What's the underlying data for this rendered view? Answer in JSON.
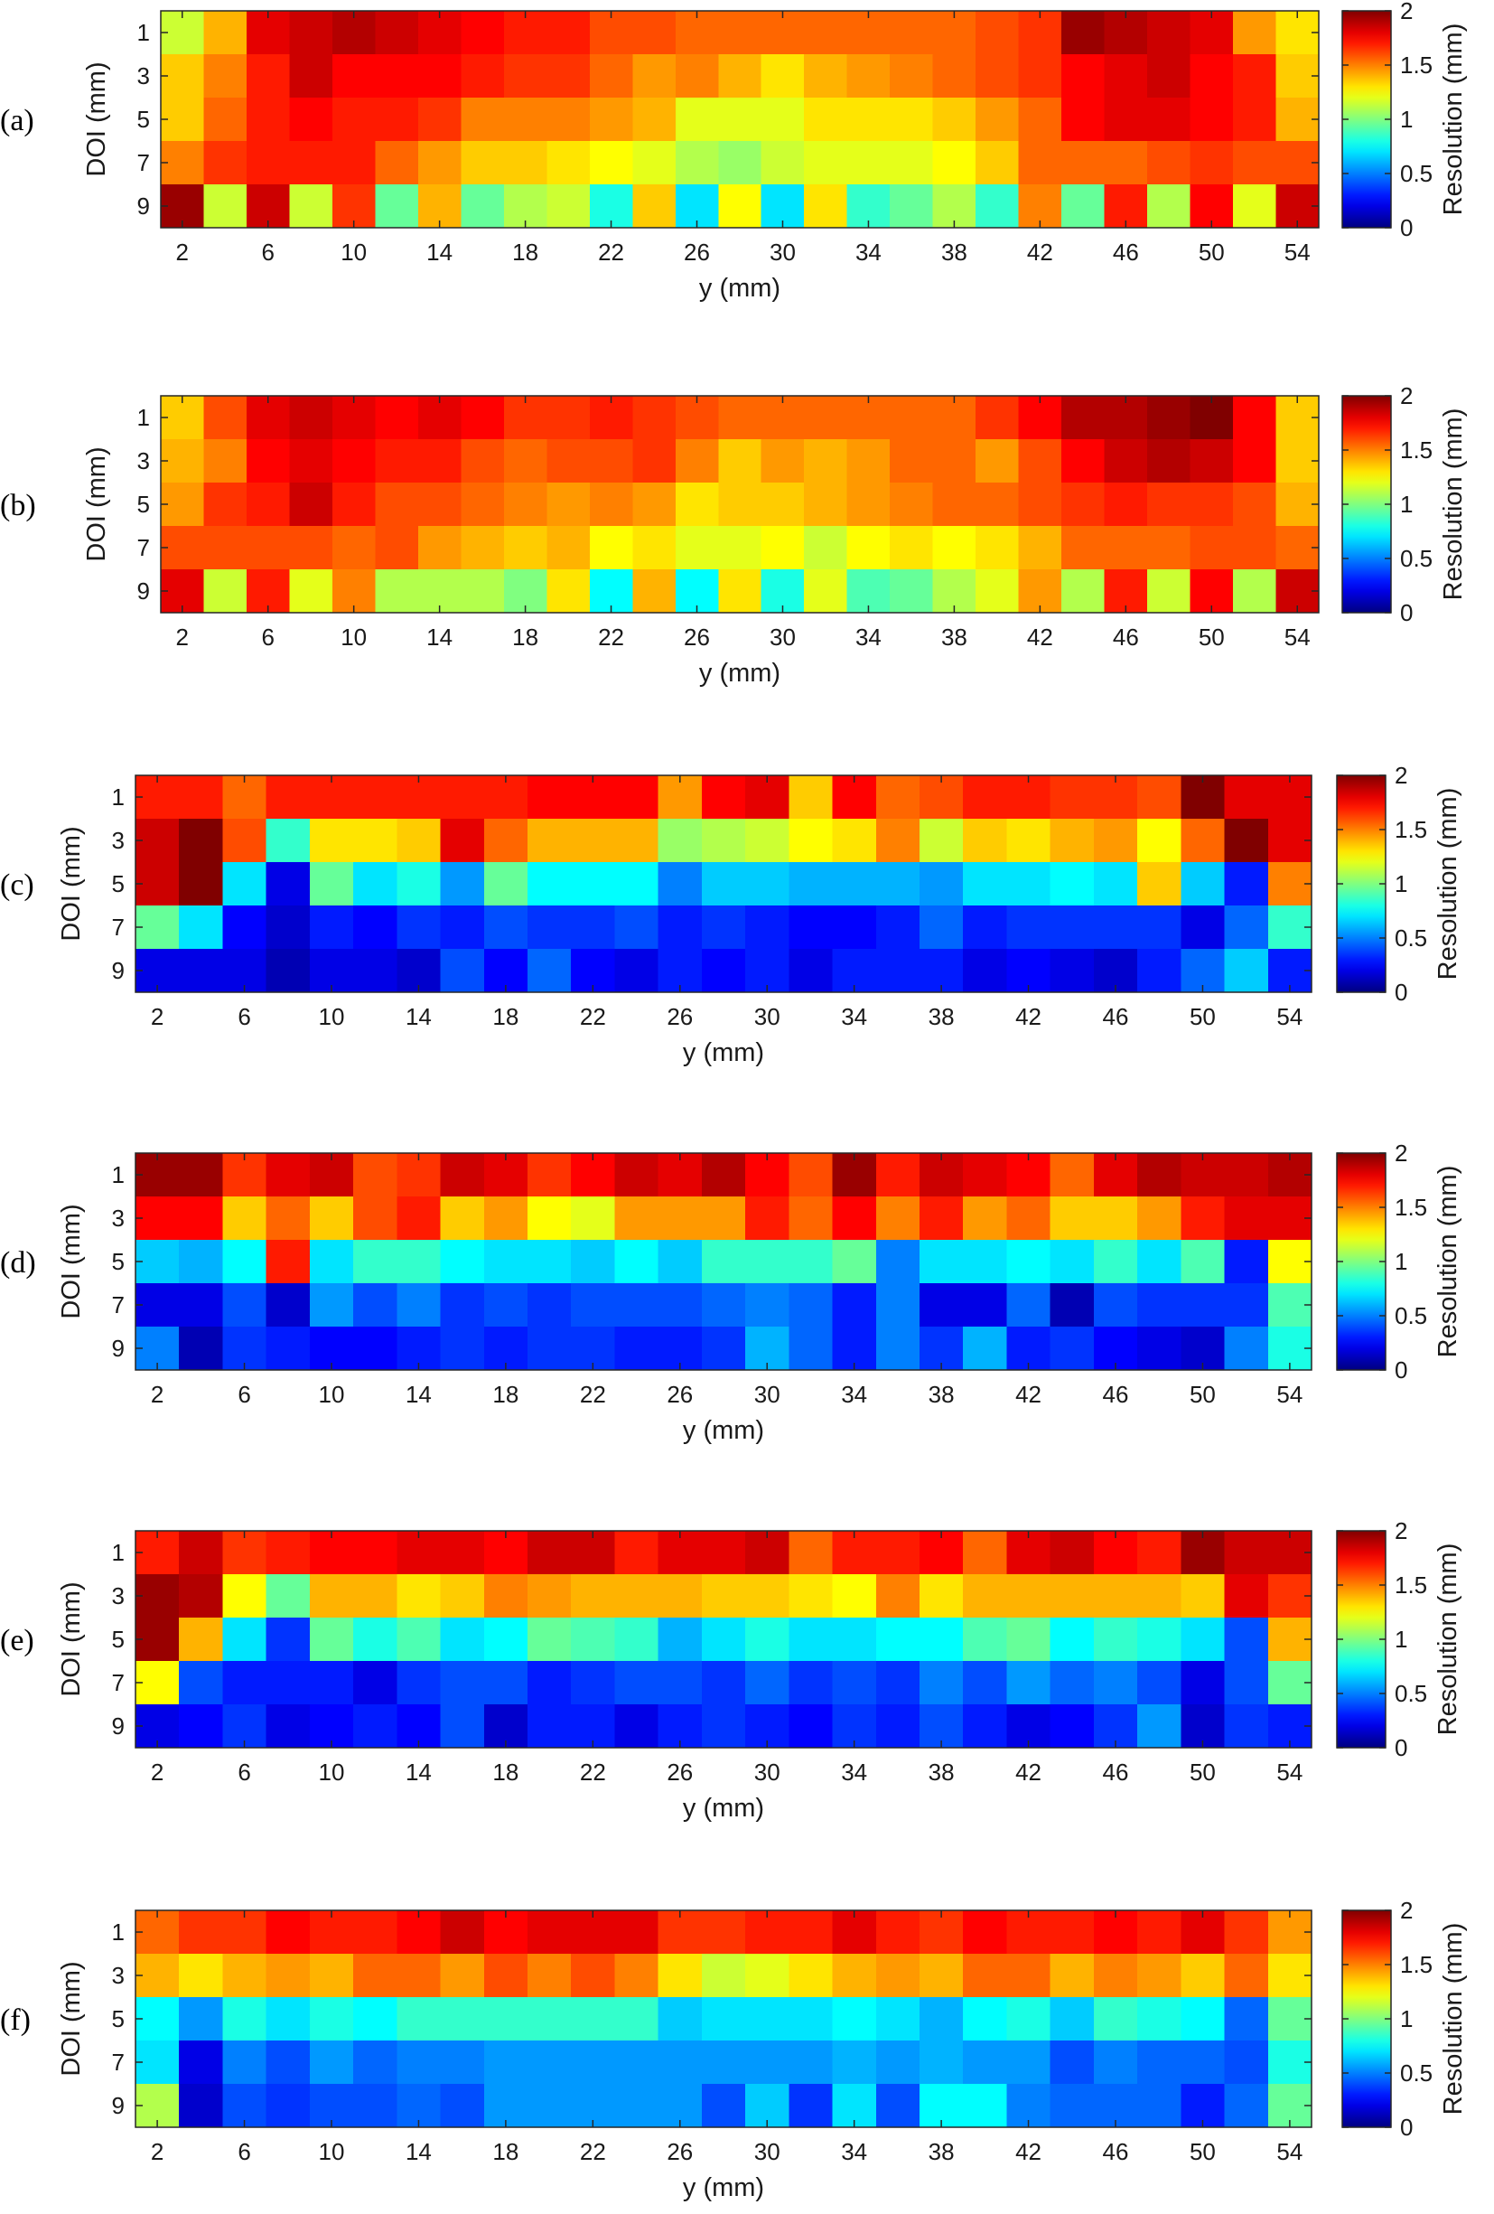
{
  "figure": {
    "xlabel": "y (mm)",
    "ylabel": "DOI (mm)",
    "colorbar_label": "Resolution (mm)",
    "colormap": "jet",
    "clim": [
      0,
      2
    ],
    "colorbar_ticks": [
      "0",
      "0.5",
      "1",
      "1.5",
      "2"
    ],
    "x_ticks": [
      "2",
      "6",
      "10",
      "14",
      "18",
      "22",
      "26",
      "30",
      "34",
      "38",
      "42",
      "46",
      "50",
      "54"
    ],
    "y_ticks": [
      "1",
      "3",
      "5",
      "7",
      "9"
    ]
  },
  "chart_data": [
    {
      "type": "heatmap",
      "panel_label": "(a)",
      "xlabel": "y (mm)",
      "ylabel": "DOI (mm)",
      "colorbar_label": "Resolution (mm)",
      "x": [
        2,
        4,
        6,
        8,
        10,
        12,
        14,
        16,
        18,
        20,
        22,
        24,
        26,
        28,
        30,
        32,
        34,
        36,
        38,
        40,
        42,
        44,
        46,
        48,
        50,
        52,
        54
      ],
      "y": [
        1,
        3,
        5,
        7,
        9
      ],
      "zlim": [
        0,
        2
      ],
      "values": [
        [
          1.15,
          1.4,
          1.8,
          1.85,
          1.9,
          1.85,
          1.8,
          1.75,
          1.7,
          1.7,
          1.6,
          1.6,
          1.55,
          1.55,
          1.55,
          1.55,
          1.55,
          1.55,
          1.55,
          1.6,
          1.65,
          1.95,
          1.9,
          1.85,
          1.8,
          1.45,
          1.3
        ],
        [
          1.35,
          1.5,
          1.7,
          1.85,
          1.75,
          1.75,
          1.75,
          1.7,
          1.65,
          1.65,
          1.55,
          1.45,
          1.5,
          1.4,
          1.3,
          1.4,
          1.45,
          1.5,
          1.55,
          1.6,
          1.65,
          1.75,
          1.8,
          1.85,
          1.75,
          1.7,
          1.35
        ],
        [
          1.35,
          1.55,
          1.7,
          1.75,
          1.7,
          1.7,
          1.65,
          1.5,
          1.5,
          1.5,
          1.45,
          1.4,
          1.2,
          1.2,
          1.2,
          1.3,
          1.3,
          1.3,
          1.35,
          1.45,
          1.55,
          1.75,
          1.8,
          1.8,
          1.75,
          1.7,
          1.4
        ],
        [
          1.5,
          1.65,
          1.7,
          1.7,
          1.7,
          1.55,
          1.45,
          1.35,
          1.35,
          1.3,
          1.25,
          1.2,
          1.1,
          1.05,
          1.15,
          1.2,
          1.2,
          1.2,
          1.25,
          1.35,
          1.55,
          1.55,
          1.55,
          1.6,
          1.65,
          1.6,
          1.6
        ],
        [
          1.95,
          1.15,
          1.85,
          1.15,
          1.65,
          0.95,
          1.4,
          0.95,
          1.1,
          1.15,
          0.8,
          1.35,
          0.7,
          1.25,
          0.7,
          1.3,
          0.85,
          0.95,
          1.1,
          0.85,
          1.5,
          0.95,
          1.7,
          1.1,
          1.75,
          1.2,
          1.85
        ]
      ]
    },
    {
      "type": "heatmap",
      "panel_label": "(b)",
      "xlabel": "y (mm)",
      "ylabel": "DOI (mm)",
      "colorbar_label": "Resolution (mm)",
      "x": [
        2,
        4,
        6,
        8,
        10,
        12,
        14,
        16,
        18,
        20,
        22,
        24,
        26,
        28,
        30,
        32,
        34,
        36,
        38,
        40,
        42,
        44,
        46,
        48,
        50,
        52,
        54
      ],
      "y": [
        1,
        3,
        5,
        7,
        9
      ],
      "zlim": [
        0,
        2
      ],
      "values": [
        [
          1.35,
          1.6,
          1.8,
          1.85,
          1.8,
          1.75,
          1.8,
          1.75,
          1.65,
          1.65,
          1.7,
          1.65,
          1.6,
          1.55,
          1.55,
          1.55,
          1.55,
          1.55,
          1.55,
          1.65,
          1.75,
          1.9,
          1.9,
          1.95,
          2.0,
          1.75,
          1.35
        ],
        [
          1.4,
          1.5,
          1.75,
          1.8,
          1.75,
          1.7,
          1.7,
          1.6,
          1.55,
          1.6,
          1.6,
          1.65,
          1.5,
          1.35,
          1.45,
          1.4,
          1.45,
          1.55,
          1.55,
          1.45,
          1.6,
          1.75,
          1.85,
          1.9,
          1.85,
          1.75,
          1.35
        ],
        [
          1.45,
          1.65,
          1.7,
          1.85,
          1.7,
          1.6,
          1.6,
          1.55,
          1.5,
          1.45,
          1.5,
          1.45,
          1.3,
          1.35,
          1.35,
          1.4,
          1.45,
          1.5,
          1.55,
          1.55,
          1.6,
          1.65,
          1.7,
          1.65,
          1.65,
          1.6,
          1.4
        ],
        [
          1.6,
          1.6,
          1.6,
          1.6,
          1.55,
          1.6,
          1.45,
          1.4,
          1.35,
          1.4,
          1.25,
          1.3,
          1.2,
          1.2,
          1.25,
          1.15,
          1.25,
          1.3,
          1.25,
          1.3,
          1.4,
          1.55,
          1.55,
          1.55,
          1.6,
          1.6,
          1.55
        ],
        [
          1.8,
          1.15,
          1.7,
          1.2,
          1.5,
          1.1,
          1.1,
          1.1,
          1.0,
          1.3,
          0.75,
          1.4,
          0.75,
          1.3,
          0.8,
          1.2,
          0.9,
          0.95,
          1.1,
          1.2,
          1.45,
          1.1,
          1.7,
          1.15,
          1.75,
          1.1,
          1.85
        ]
      ]
    },
    {
      "type": "heatmap",
      "panel_label": "(c)",
      "xlabel": "y (mm)",
      "ylabel": "DOI (mm)",
      "colorbar_label": "Resolution (mm)",
      "x": [
        2,
        4,
        6,
        8,
        10,
        12,
        14,
        16,
        18,
        20,
        22,
        24,
        26,
        28,
        30,
        32,
        34,
        36,
        38,
        40,
        42,
        44,
        46,
        48,
        50,
        52,
        54
      ],
      "y": [
        1,
        3,
        5,
        7,
        9
      ],
      "zlim": [
        0,
        2
      ],
      "values": [
        [
          1.7,
          1.7,
          1.55,
          1.7,
          1.7,
          1.7,
          1.7,
          1.7,
          1.7,
          1.75,
          1.75,
          1.75,
          1.45,
          1.75,
          1.8,
          1.35,
          1.75,
          1.55,
          1.6,
          1.7,
          1.7,
          1.65,
          1.65,
          1.6,
          2.0,
          1.8,
          1.8
        ],
        [
          1.85,
          2.0,
          1.6,
          0.85,
          1.3,
          1.3,
          1.35,
          1.8,
          1.55,
          1.4,
          1.4,
          1.4,
          1.05,
          1.1,
          1.15,
          1.25,
          1.3,
          1.5,
          1.15,
          1.35,
          1.3,
          1.4,
          1.45,
          1.25,
          1.55,
          2.0,
          1.8
        ],
        [
          1.85,
          2.0,
          0.7,
          0.2,
          0.95,
          0.7,
          0.8,
          0.55,
          0.95,
          0.75,
          0.75,
          0.75,
          0.5,
          0.65,
          0.65,
          0.6,
          0.6,
          0.6,
          0.55,
          0.7,
          0.7,
          0.75,
          0.7,
          1.35,
          0.65,
          0.3,
          1.5
        ],
        [
          0.95,
          0.7,
          0.25,
          0.15,
          0.3,
          0.25,
          0.35,
          0.3,
          0.4,
          0.35,
          0.35,
          0.4,
          0.3,
          0.35,
          0.3,
          0.25,
          0.25,
          0.3,
          0.45,
          0.3,
          0.35,
          0.35,
          0.35,
          0.35,
          0.2,
          0.45,
          0.85
        ],
        [
          0.2,
          0.2,
          0.2,
          0.1,
          0.2,
          0.2,
          0.15,
          0.4,
          0.25,
          0.45,
          0.25,
          0.2,
          0.3,
          0.25,
          0.3,
          0.2,
          0.3,
          0.3,
          0.3,
          0.2,
          0.25,
          0.2,
          0.15,
          0.3,
          0.45,
          0.65,
          0.3
        ]
      ]
    },
    {
      "type": "heatmap",
      "panel_label": "(d)",
      "xlabel": "y (mm)",
      "ylabel": "DOI (mm)",
      "colorbar_label": "Resolution (mm)",
      "x": [
        2,
        4,
        6,
        8,
        10,
        12,
        14,
        16,
        18,
        20,
        22,
        24,
        26,
        28,
        30,
        32,
        34,
        36,
        38,
        40,
        42,
        44,
        46,
        48,
        50,
        52,
        54
      ],
      "y": [
        1,
        3,
        5,
        7,
        9
      ],
      "zlim": [
        0,
        2
      ],
      "values": [
        [
          1.95,
          1.95,
          1.65,
          1.8,
          1.85,
          1.6,
          1.65,
          1.85,
          1.8,
          1.65,
          1.75,
          1.85,
          1.8,
          1.9,
          1.75,
          1.6,
          1.95,
          1.7,
          1.85,
          1.8,
          1.75,
          1.55,
          1.8,
          1.9,
          1.85,
          1.85,
          1.9
        ],
        [
          1.75,
          1.75,
          1.35,
          1.55,
          1.35,
          1.6,
          1.7,
          1.35,
          1.45,
          1.25,
          1.2,
          1.45,
          1.45,
          1.45,
          1.7,
          1.55,
          1.75,
          1.5,
          1.7,
          1.45,
          1.55,
          1.35,
          1.35,
          1.45,
          1.7,
          1.8,
          1.8
        ],
        [
          0.65,
          0.6,
          0.75,
          1.7,
          0.7,
          0.85,
          0.85,
          0.75,
          0.7,
          0.7,
          0.65,
          0.75,
          0.65,
          0.85,
          0.85,
          0.85,
          0.95,
          0.5,
          0.7,
          0.7,
          0.75,
          0.7,
          0.85,
          0.7,
          0.9,
          0.3,
          1.25
        ],
        [
          0.2,
          0.2,
          0.4,
          0.15,
          0.55,
          0.4,
          0.5,
          0.35,
          0.4,
          0.35,
          0.4,
          0.4,
          0.4,
          0.45,
          0.5,
          0.45,
          0.3,
          0.5,
          0.2,
          0.2,
          0.45,
          0.1,
          0.4,
          0.35,
          0.35,
          0.35,
          0.9
        ],
        [
          0.5,
          0.1,
          0.35,
          0.3,
          0.25,
          0.25,
          0.3,
          0.35,
          0.3,
          0.35,
          0.35,
          0.3,
          0.3,
          0.35,
          0.6,
          0.45,
          0.3,
          0.5,
          0.35,
          0.6,
          0.3,
          0.35,
          0.25,
          0.2,
          0.15,
          0.5,
          0.8
        ]
      ]
    },
    {
      "type": "heatmap",
      "panel_label": "(e)",
      "xlabel": "y (mm)",
      "ylabel": "DOI (mm)",
      "colorbar_label": "Resolution (mm)",
      "x": [
        2,
        4,
        6,
        8,
        10,
        12,
        14,
        16,
        18,
        20,
        22,
        24,
        26,
        28,
        30,
        32,
        34,
        36,
        38,
        40,
        42,
        44,
        46,
        48,
        50,
        52,
        54
      ],
      "y": [
        1,
        3,
        5,
        7,
        9
      ],
      "zlim": [
        0,
        2
      ],
      "values": [
        [
          1.7,
          1.85,
          1.65,
          1.7,
          1.75,
          1.75,
          1.8,
          1.8,
          1.75,
          1.85,
          1.85,
          1.7,
          1.8,
          1.8,
          1.85,
          1.55,
          1.7,
          1.7,
          1.75,
          1.55,
          1.8,
          1.85,
          1.75,
          1.7,
          1.95,
          1.85,
          1.85
        ],
        [
          1.95,
          1.9,
          1.25,
          0.95,
          1.4,
          1.4,
          1.3,
          1.35,
          1.5,
          1.45,
          1.4,
          1.4,
          1.4,
          1.35,
          1.35,
          1.3,
          1.25,
          1.5,
          1.3,
          1.4,
          1.4,
          1.4,
          1.4,
          1.4,
          1.35,
          1.8,
          1.65
        ],
        [
          1.95,
          1.4,
          0.7,
          0.35,
          0.95,
          0.8,
          0.9,
          0.7,
          0.75,
          0.95,
          0.9,
          0.85,
          0.6,
          0.7,
          0.8,
          0.7,
          0.7,
          0.75,
          0.75,
          0.9,
          0.95,
          0.75,
          0.85,
          0.8,
          0.7,
          0.4,
          1.4
        ],
        [
          1.25,
          0.4,
          0.3,
          0.3,
          0.3,
          0.2,
          0.35,
          0.4,
          0.4,
          0.3,
          0.35,
          0.4,
          0.4,
          0.35,
          0.45,
          0.35,
          0.4,
          0.35,
          0.5,
          0.4,
          0.55,
          0.45,
          0.5,
          0.4,
          0.2,
          0.4,
          0.95
        ],
        [
          0.2,
          0.25,
          0.35,
          0.2,
          0.25,
          0.3,
          0.25,
          0.4,
          0.15,
          0.3,
          0.3,
          0.2,
          0.3,
          0.35,
          0.3,
          0.25,
          0.35,
          0.3,
          0.4,
          0.3,
          0.2,
          0.25,
          0.35,
          0.55,
          0.15,
          0.35,
          0.3
        ]
      ]
    },
    {
      "type": "heatmap",
      "panel_label": "(f)",
      "xlabel": "y (mm)",
      "ylabel": "DOI (mm)",
      "colorbar_label": "Resolution (mm)",
      "x": [
        2,
        4,
        6,
        8,
        10,
        12,
        14,
        16,
        18,
        20,
        22,
        24,
        26,
        28,
        30,
        32,
        34,
        36,
        38,
        40,
        42,
        44,
        46,
        48,
        50,
        52,
        54
      ],
      "y": [
        1,
        3,
        5,
        7,
        9
      ],
      "zlim": [
        0,
        2
      ],
      "values": [
        [
          1.55,
          1.65,
          1.65,
          1.75,
          1.7,
          1.7,
          1.75,
          1.85,
          1.75,
          1.8,
          1.8,
          1.8,
          1.65,
          1.65,
          1.7,
          1.7,
          1.8,
          1.7,
          1.65,
          1.75,
          1.7,
          1.7,
          1.75,
          1.7,
          1.8,
          1.65,
          1.45
        ],
        [
          1.4,
          1.3,
          1.4,
          1.45,
          1.4,
          1.55,
          1.55,
          1.45,
          1.6,
          1.5,
          1.6,
          1.5,
          1.3,
          1.15,
          1.2,
          1.3,
          1.4,
          1.45,
          1.4,
          1.55,
          1.55,
          1.4,
          1.5,
          1.45,
          1.35,
          1.55,
          1.3
        ],
        [
          0.75,
          0.55,
          0.8,
          0.7,
          0.8,
          0.75,
          0.85,
          0.85,
          0.85,
          0.85,
          0.85,
          0.85,
          0.65,
          0.7,
          0.7,
          0.7,
          0.75,
          0.7,
          0.6,
          0.75,
          0.8,
          0.65,
          0.85,
          0.8,
          0.75,
          0.45,
          0.95
        ],
        [
          0.7,
          0.2,
          0.5,
          0.4,
          0.55,
          0.45,
          0.5,
          0.5,
          0.55,
          0.55,
          0.55,
          0.55,
          0.55,
          0.55,
          0.55,
          0.55,
          0.6,
          0.55,
          0.6,
          0.55,
          0.55,
          0.4,
          0.5,
          0.45,
          0.45,
          0.4,
          0.8
        ],
        [
          1.1,
          0.15,
          0.4,
          0.35,
          0.4,
          0.4,
          0.45,
          0.4,
          0.55,
          0.55,
          0.55,
          0.55,
          0.55,
          0.4,
          0.65,
          0.35,
          0.7,
          0.4,
          0.75,
          0.75,
          0.5,
          0.45,
          0.45,
          0.45,
          0.3,
          0.45,
          0.95
        ]
      ]
    }
  ]
}
